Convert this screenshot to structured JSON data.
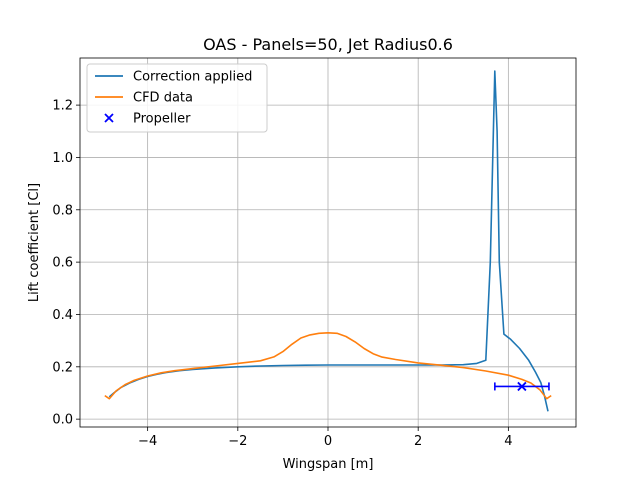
{
  "chart_data": {
    "type": "line",
    "title": "OAS - Panels=50, Jet Radius0.6",
    "xlabel": "Wingspan [m]",
    "ylabel": "Lift coefficient [Cl]",
    "xlim": [
      -5.5,
      5.5
    ],
    "ylim": [
      -0.03,
      1.38
    ],
    "xticks": [
      -4,
      -2,
      0,
      2,
      4
    ],
    "xtick_labels": [
      "−4",
      "−2",
      "0",
      "2",
      "4"
    ],
    "yticks": [
      0.0,
      0.2,
      0.4,
      0.6,
      0.8,
      1.0,
      1.2
    ],
    "ytick_labels": [
      "0.0",
      "0.2",
      "0.4",
      "0.6",
      "0.8",
      "1.0",
      "1.2"
    ],
    "grid": true,
    "legend_position": "top-left",
    "series": [
      {
        "name": "Correction applied",
        "color": "#1f77b4",
        "kind": "line",
        "x": [
          -4.85,
          -4.75,
          -4.6,
          -4.4,
          -4.2,
          -4.0,
          -3.8,
          -3.6,
          -3.3,
          -3.0,
          -2.5,
          -2.0,
          -1.5,
          -1.0,
          -0.5,
          0.0,
          0.5,
          1.0,
          1.5,
          2.0,
          2.5,
          3.0,
          3.3,
          3.5,
          3.6,
          3.7,
          3.75,
          3.8,
          3.9,
          4.05,
          4.25,
          4.45,
          4.6,
          4.72,
          4.8,
          4.88
        ],
        "y": [
          0.085,
          0.1,
          0.12,
          0.138,
          0.152,
          0.163,
          0.171,
          0.178,
          0.185,
          0.19,
          0.196,
          0.2,
          0.203,
          0.205,
          0.206,
          0.207,
          0.207,
          0.207,
          0.207,
          0.207,
          0.207,
          0.208,
          0.213,
          0.225,
          0.6,
          1.33,
          1.1,
          0.6,
          0.325,
          0.305,
          0.27,
          0.225,
          0.18,
          0.14,
          0.09,
          0.03
        ]
      },
      {
        "name": "CFD data",
        "color": "#ff7f0e",
        "kind": "line",
        "x": [
          -4.95,
          -4.85,
          -4.7,
          -4.5,
          -4.3,
          -4.0,
          -3.7,
          -3.4,
          -3.0,
          -2.5,
          -2.0,
          -1.5,
          -1.2,
          -1.0,
          -0.8,
          -0.6,
          -0.4,
          -0.2,
          0.0,
          0.2,
          0.4,
          0.6,
          0.8,
          1.0,
          1.2,
          1.5,
          2.0,
          2.5,
          3.0,
          3.5,
          4.0,
          4.3,
          4.5,
          4.7,
          4.85,
          4.95
        ],
        "y": [
          0.09,
          0.078,
          0.108,
          0.132,
          0.148,
          0.165,
          0.177,
          0.185,
          0.193,
          0.203,
          0.213,
          0.223,
          0.238,
          0.258,
          0.286,
          0.31,
          0.322,
          0.328,
          0.33,
          0.328,
          0.316,
          0.295,
          0.27,
          0.25,
          0.237,
          0.228,
          0.215,
          0.206,
          0.197,
          0.184,
          0.168,
          0.152,
          0.138,
          0.112,
          0.078,
          0.09
        ]
      },
      {
        "name": "Propeller",
        "color": "#0000ff",
        "kind": "marker",
        "x": [
          4.3
        ],
        "y": [
          0.125
        ],
        "x_error": [
          0.6
        ]
      }
    ]
  }
}
